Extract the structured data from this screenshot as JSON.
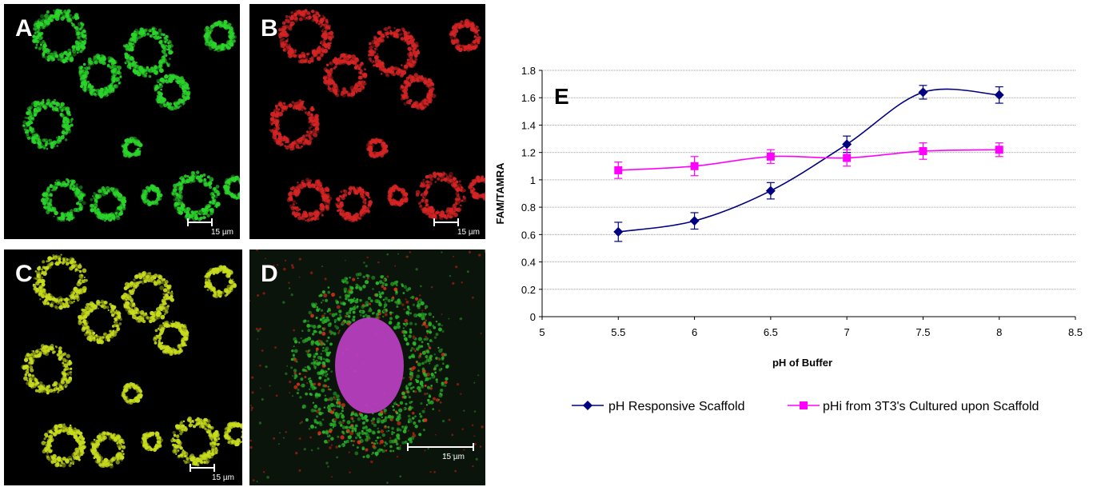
{
  "panels": [
    {
      "label": "A",
      "scalebar": "15 µm",
      "color": "#2bd42b"
    },
    {
      "label": "B",
      "scalebar": "15 µm",
      "color": "#d42424"
    },
    {
      "label": "C",
      "scalebar": "15 µm",
      "color": "#c8dc1e"
    },
    {
      "label": "D",
      "scalebar": "15 µm",
      "color": "#c040c8"
    }
  ],
  "chart_data": {
    "type": "line",
    "panel_label": "E",
    "xlabel": "pH of Buffer",
    "ylabel": "FAM/TAMRA",
    "xlim": [
      5,
      8.5
    ],
    "ylim": [
      0,
      1.8
    ],
    "xticks": [
      "5",
      "5.5",
      "6",
      "6.5",
      "7",
      "7.5",
      "8",
      "8.5"
    ],
    "yticks": [
      "0",
      "0.2",
      "0.4",
      "0.6",
      "0.8",
      "1",
      "1.2",
      "1.4",
      "1.6",
      "1.8"
    ],
    "legend_position": "bottom",
    "series": [
      {
        "name": "pH Responsive Scaffold",
        "color": "#000080",
        "marker": "diamond",
        "x": [
          5.5,
          6,
          6.5,
          7,
          7.5,
          8
        ],
        "y": [
          0.62,
          0.7,
          0.92,
          1.26,
          1.64,
          1.62
        ],
        "err": [
          0.07,
          0.06,
          0.06,
          0.06,
          0.05,
          0.06
        ]
      },
      {
        "name": "pHi from 3T3's Cultured upon Scaffold",
        "color": "#ff00ff",
        "marker": "square",
        "x": [
          5.5,
          6,
          6.5,
          7,
          7.5,
          8
        ],
        "y": [
          1.07,
          1.1,
          1.17,
          1.16,
          1.21,
          1.22
        ],
        "err": [
          0.06,
          0.07,
          0.05,
          0.06,
          0.06,
          0.05
        ]
      }
    ]
  }
}
